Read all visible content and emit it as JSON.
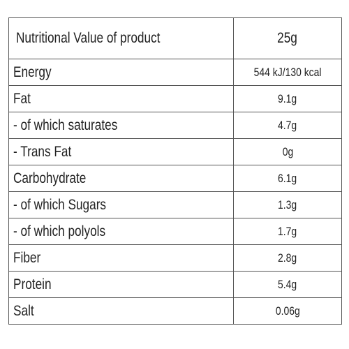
{
  "table": {
    "header": [
      "Nutritional Value of product",
      "25g"
    ],
    "rows": [
      [
        "Energy",
        "544 kJ/130 kcal"
      ],
      [
        "Fat",
        "9.1g"
      ],
      [
        "- of which saturates",
        "4.7g"
      ],
      [
        "- Trans Fat",
        "0g"
      ],
      [
        "Carbohydrate",
        "6.1g"
      ],
      [
        "- of which Sugars",
        "1.3g"
      ],
      [
        "- of which polyols",
        "1.7g"
      ],
      [
        "Fiber",
        "2.8g"
      ],
      [
        "Protein",
        "5.4g"
      ],
      [
        "Salt",
        "0.06g"
      ]
    ]
  }
}
